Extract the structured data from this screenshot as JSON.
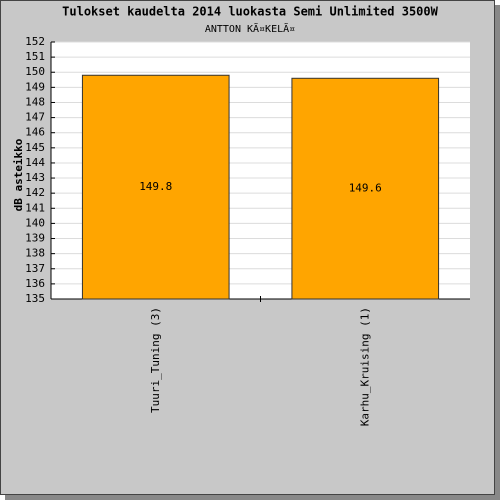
{
  "chart_data": {
    "type": "bar",
    "title": "Tulokset kaudelta 2014 luokasta Semi Unlimited 3500W",
    "subtitle": "ANTTON KÃ¤KELÃ¤",
    "y_label": "dB asteikko",
    "categories": [
      "Tuuri_Tuning (3)",
      "Karhu_Kruising (1)"
    ],
    "values": [
      149.8,
      149.6
    ],
    "color": "#ffa500",
    "ylim": [
      135,
      152
    ],
    "yticks": [
      135,
      136,
      137,
      138,
      139,
      140,
      141,
      142,
      143,
      144,
      145,
      146,
      147,
      148,
      149,
      150,
      151,
      152
    ],
    "grid": true
  }
}
